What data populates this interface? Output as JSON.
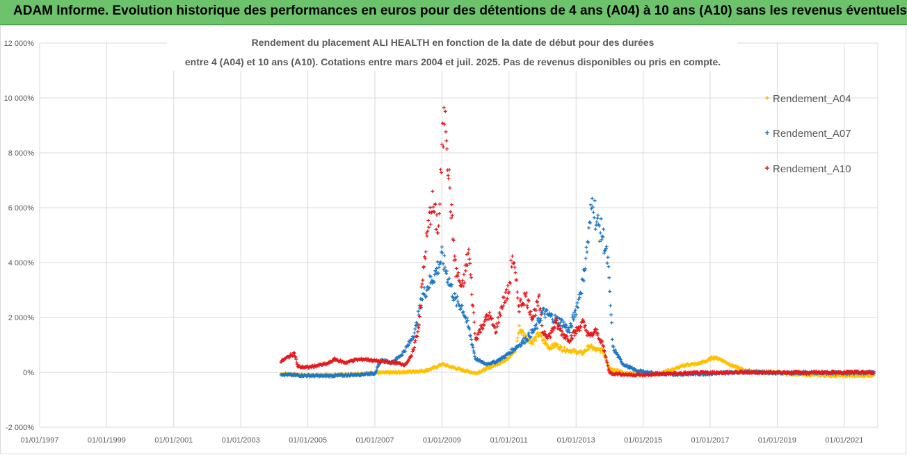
{
  "banner": {
    "title": "ADAM Informe. Evolution historique des performances en euros pour des détentions de 4 ans (A04) à 10 ans (A10) sans les revenus éventuels"
  },
  "colors": {
    "banner_bg": "#6cc36c",
    "A04": "#ffc000",
    "A07": "#1f77c4",
    "A10": "#e41a1c",
    "grid": "#d9d9d9"
  },
  "chart_data": {
    "type": "scatter",
    "title_line1": "Rendement du placement ALI HEALTH en fonction de la date de début pour des durées",
    "title_line2": "entre 4 (A04) et 10 ans (A10). Cotations entre mars 2004 et juil. 2025. Pas de revenus disponibles ou pris en compte.",
    "y_tick_labels": [
      "-2 000%",
      "0%",
      "2 000%",
      "4 000%",
      "6 000%",
      "8 000%",
      "10 000%",
      "12 000%"
    ],
    "x_tick_labels": [
      "01/01/1997",
      "01/01/1999",
      "01/01/2001",
      "01/01/2003",
      "01/01/2005",
      "01/01/2007",
      "01/01/2009",
      "01/01/2011",
      "01/01/2013",
      "01/01/2015",
      "01/01/2017",
      "01/01/2019",
      "01/01/2021"
    ],
    "xlim": [
      1997.0,
      2022.0
    ],
    "ylim": [
      -2000,
      12000
    ],
    "grid": true,
    "legend_position": "right",
    "marker": "+",
    "series": [
      {
        "name": "Rendement_A04",
        "color": "#ffc000",
        "points": [
          [
            2004.2,
            -50
          ],
          [
            2004.5,
            -80
          ],
          [
            2005.0,
            -100
          ],
          [
            2005.5,
            -110
          ],
          [
            2006.0,
            -100
          ],
          [
            2006.5,
            -60
          ],
          [
            2007.0,
            -20
          ],
          [
            2007.5,
            -10
          ],
          [
            2008.0,
            20
          ],
          [
            2008.5,
            60
          ],
          [
            2008.8,
            180
          ],
          [
            2009.0,
            300
          ],
          [
            2009.2,
            220
          ],
          [
            2009.5,
            120
          ],
          [
            2009.8,
            30
          ],
          [
            2010.0,
            -30
          ],
          [
            2010.2,
            60
          ],
          [
            2010.5,
            220
          ],
          [
            2010.8,
            380
          ],
          [
            2011.0,
            550
          ],
          [
            2011.2,
            800
          ],
          [
            2011.3,
            1600
          ],
          [
            2011.5,
            1300
          ],
          [
            2011.7,
            1100
          ],
          [
            2011.9,
            1400
          ],
          [
            2012.0,
            1200
          ],
          [
            2012.2,
            900
          ],
          [
            2012.4,
            1000
          ],
          [
            2012.6,
            850
          ],
          [
            2012.8,
            800
          ],
          [
            2013.0,
            750
          ],
          [
            2013.2,
            700
          ],
          [
            2013.4,
            950
          ],
          [
            2013.6,
            820
          ],
          [
            2013.8,
            800
          ],
          [
            2014.0,
            150
          ],
          [
            2014.5,
            -40
          ],
          [
            2015.0,
            -60
          ],
          [
            2015.5,
            -30
          ],
          [
            2016.0,
            150
          ],
          [
            2016.3,
            280
          ],
          [
            2016.6,
            300
          ],
          [
            2016.9,
            420
          ],
          [
            2017.1,
            550
          ],
          [
            2017.3,
            480
          ],
          [
            2017.6,
            280
          ],
          [
            2018.0,
            80
          ],
          [
            2018.5,
            20
          ],
          [
            2019.0,
            -20
          ],
          [
            2019.5,
            -60
          ],
          [
            2020.0,
            -90
          ],
          [
            2020.5,
            -110
          ],
          [
            2021.0,
            -120
          ],
          [
            2021.4,
            -130
          ],
          [
            2021.9,
            -100
          ]
        ]
      },
      {
        "name": "Rendement_A07",
        "color": "#1f77c4",
        "points": [
          [
            2004.2,
            -60
          ],
          [
            2004.5,
            -100
          ],
          [
            2005.0,
            -120
          ],
          [
            2005.5,
            -130
          ],
          [
            2006.0,
            -110
          ],
          [
            2006.5,
            -80
          ],
          [
            2007.0,
            -30
          ],
          [
            2007.2,
            450
          ],
          [
            2007.5,
            350
          ],
          [
            2007.8,
            650
          ],
          [
            2008.0,
            1000
          ],
          [
            2008.2,
            1500
          ],
          [
            2008.4,
            2700
          ],
          [
            2008.6,
            3200
          ],
          [
            2008.8,
            3600
          ],
          [
            2009.0,
            4200
          ],
          [
            2009.2,
            3400
          ],
          [
            2009.4,
            2600
          ],
          [
            2009.6,
            2400
          ],
          [
            2009.8,
            1600
          ],
          [
            2010.0,
            500
          ],
          [
            2010.3,
            300
          ],
          [
            2010.6,
            380
          ],
          [
            2010.9,
            600
          ],
          [
            2011.2,
            900
          ],
          [
            2011.5,
            1200
          ],
          [
            2011.8,
            1600
          ],
          [
            2012.0,
            2200
          ],
          [
            2012.3,
            2000
          ],
          [
            2012.6,
            1800
          ],
          [
            2012.8,
            1500
          ],
          [
            2013.0,
            2300
          ],
          [
            2013.2,
            3300
          ],
          [
            2013.4,
            5200
          ],
          [
            2013.5,
            6500
          ],
          [
            2013.6,
            5500
          ],
          [
            2013.8,
            5000
          ],
          [
            2013.95,
            4000
          ],
          [
            2014.1,
            900
          ],
          [
            2014.4,
            300
          ],
          [
            2014.8,
            60
          ],
          [
            2015.5,
            -60
          ],
          [
            2016.0,
            -70
          ],
          [
            2017.0,
            -50
          ],
          [
            2018.0,
            20
          ],
          [
            2019.0,
            -20
          ],
          [
            2020.0,
            -30
          ],
          [
            2021.0,
            -20
          ],
          [
            2021.9,
            -10
          ]
        ]
      },
      {
        "name": "Rendement_A10",
        "color": "#e41a1c",
        "points": [
          [
            2004.2,
            400
          ],
          [
            2004.4,
            550
          ],
          [
            2004.6,
            700
          ],
          [
            2004.7,
            200
          ],
          [
            2005.0,
            180
          ],
          [
            2005.3,
            250
          ],
          [
            2005.6,
            320
          ],
          [
            2005.8,
            480
          ],
          [
            2006.1,
            350
          ],
          [
            2006.4,
            450
          ],
          [
            2006.7,
            480
          ],
          [
            2007.0,
            420
          ],
          [
            2007.3,
            380
          ],
          [
            2007.6,
            350
          ],
          [
            2007.9,
            280
          ],
          [
            2008.1,
            600
          ],
          [
            2008.3,
            1600
          ],
          [
            2008.5,
            4400
          ],
          [
            2008.7,
            6200
          ],
          [
            2008.9,
            5200
          ],
          [
            2009.0,
            8000
          ],
          [
            2009.1,
            9800
          ],
          [
            2009.2,
            7200
          ],
          [
            2009.4,
            3800
          ],
          [
            2009.6,
            3000
          ],
          [
            2009.8,
            4400
          ],
          [
            2010.0,
            1200
          ],
          [
            2010.2,
            1700
          ],
          [
            2010.4,
            2100
          ],
          [
            2010.6,
            1500
          ],
          [
            2010.8,
            2500
          ],
          [
            2011.0,
            3000
          ],
          [
            2011.1,
            4300
          ],
          [
            2011.3,
            2400
          ],
          [
            2011.5,
            2800
          ],
          [
            2011.7,
            2000
          ],
          [
            2011.9,
            2600
          ],
          [
            2012.0,
            1500
          ],
          [
            2012.2,
            1300
          ],
          [
            2012.4,
            1800
          ],
          [
            2012.6,
            1400
          ],
          [
            2012.8,
            1200
          ],
          [
            2013.0,
            1500
          ],
          [
            2013.2,
            1800
          ],
          [
            2013.4,
            1300
          ],
          [
            2013.6,
            1500
          ],
          [
            2013.8,
            1000
          ],
          [
            2014.0,
            -30
          ],
          [
            2014.5,
            -80
          ],
          [
            2015.0,
            -100
          ],
          [
            2015.5,
            -60
          ],
          [
            2016.0,
            -40
          ],
          [
            2017.0,
            -10
          ],
          [
            2018.0,
            0
          ],
          [
            2019.0,
            0
          ],
          [
            2020.0,
            0
          ],
          [
            2021.0,
            0
          ],
          [
            2021.9,
            0
          ]
        ]
      }
    ]
  }
}
